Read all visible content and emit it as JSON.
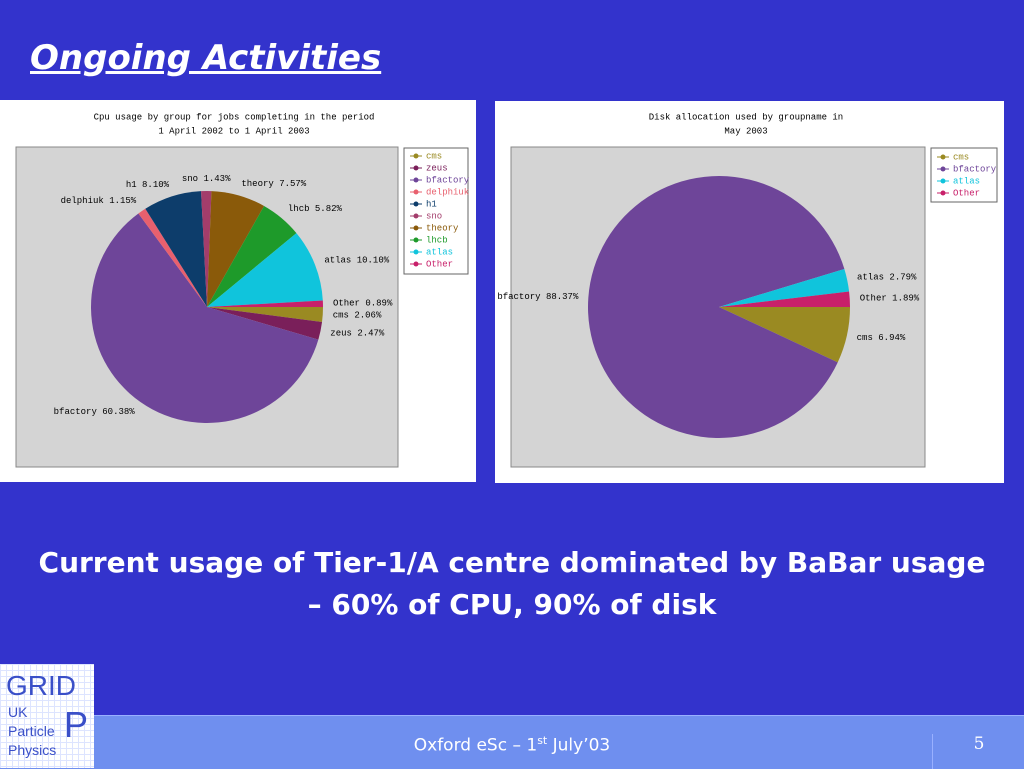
{
  "slide_title": "Ongoing Activities",
  "body_text": "Current usage of Tier-1/A centre dominated by BaBar usage – 60% of CPU, 90% of disk",
  "footer": {
    "text_before": "Oxford eSc – 1",
    "superscript": "st",
    "text_after": " July’03",
    "page_number": "5"
  },
  "logo": {
    "top": "GRID",
    "lines": [
      "UK",
      "Particle",
      "Physics"
    ],
    "letter": "P"
  },
  "chart_data": [
    {
      "type": "pie",
      "title": [
        "Cpu usage by group for jobs completing in the period",
        "1 April 2002 to 1 April 2003"
      ],
      "categories": [
        "cms",
        "zeus",
        "bfactory",
        "delphiuk",
        "h1",
        "sno",
        "theory",
        "lhcb",
        "atlas",
        "Other"
      ],
      "values": [
        2.06,
        2.47,
        60.38,
        1.15,
        8.1,
        1.43,
        7.57,
        5.82,
        10.1,
        0.89
      ],
      "value_labels": [
        "2.06%",
        "2.47%",
        "60.38%",
        "1.15%",
        "8.10%",
        "1.43%",
        "7.57%",
        "5.82%",
        "10.10%",
        "0.89%"
      ],
      "colors": [
        "#9a8a22",
        "#7a1f5a",
        "#6e4599",
        "#e8606e",
        "#0d3d6b",
        "#a33d6b",
        "#8a5a0a",
        "#1e9a2a",
        "#10c4dc",
        "#c8206a"
      ],
      "legend": "right"
    },
    {
      "type": "pie",
      "title": [
        "Disk allocation used by groupname in",
        "May 2003"
      ],
      "categories": [
        "cms",
        "bfactory",
        "atlas",
        "Other"
      ],
      "values": [
        6.94,
        88.37,
        2.79,
        1.89
      ],
      "value_labels": [
        "6.94%",
        "88.37%",
        "2.79%",
        "1.89%"
      ],
      "colors": [
        "#9a8a22",
        "#6e4599",
        "#10c4dc",
        "#c8206a"
      ],
      "legend": "right"
    }
  ]
}
